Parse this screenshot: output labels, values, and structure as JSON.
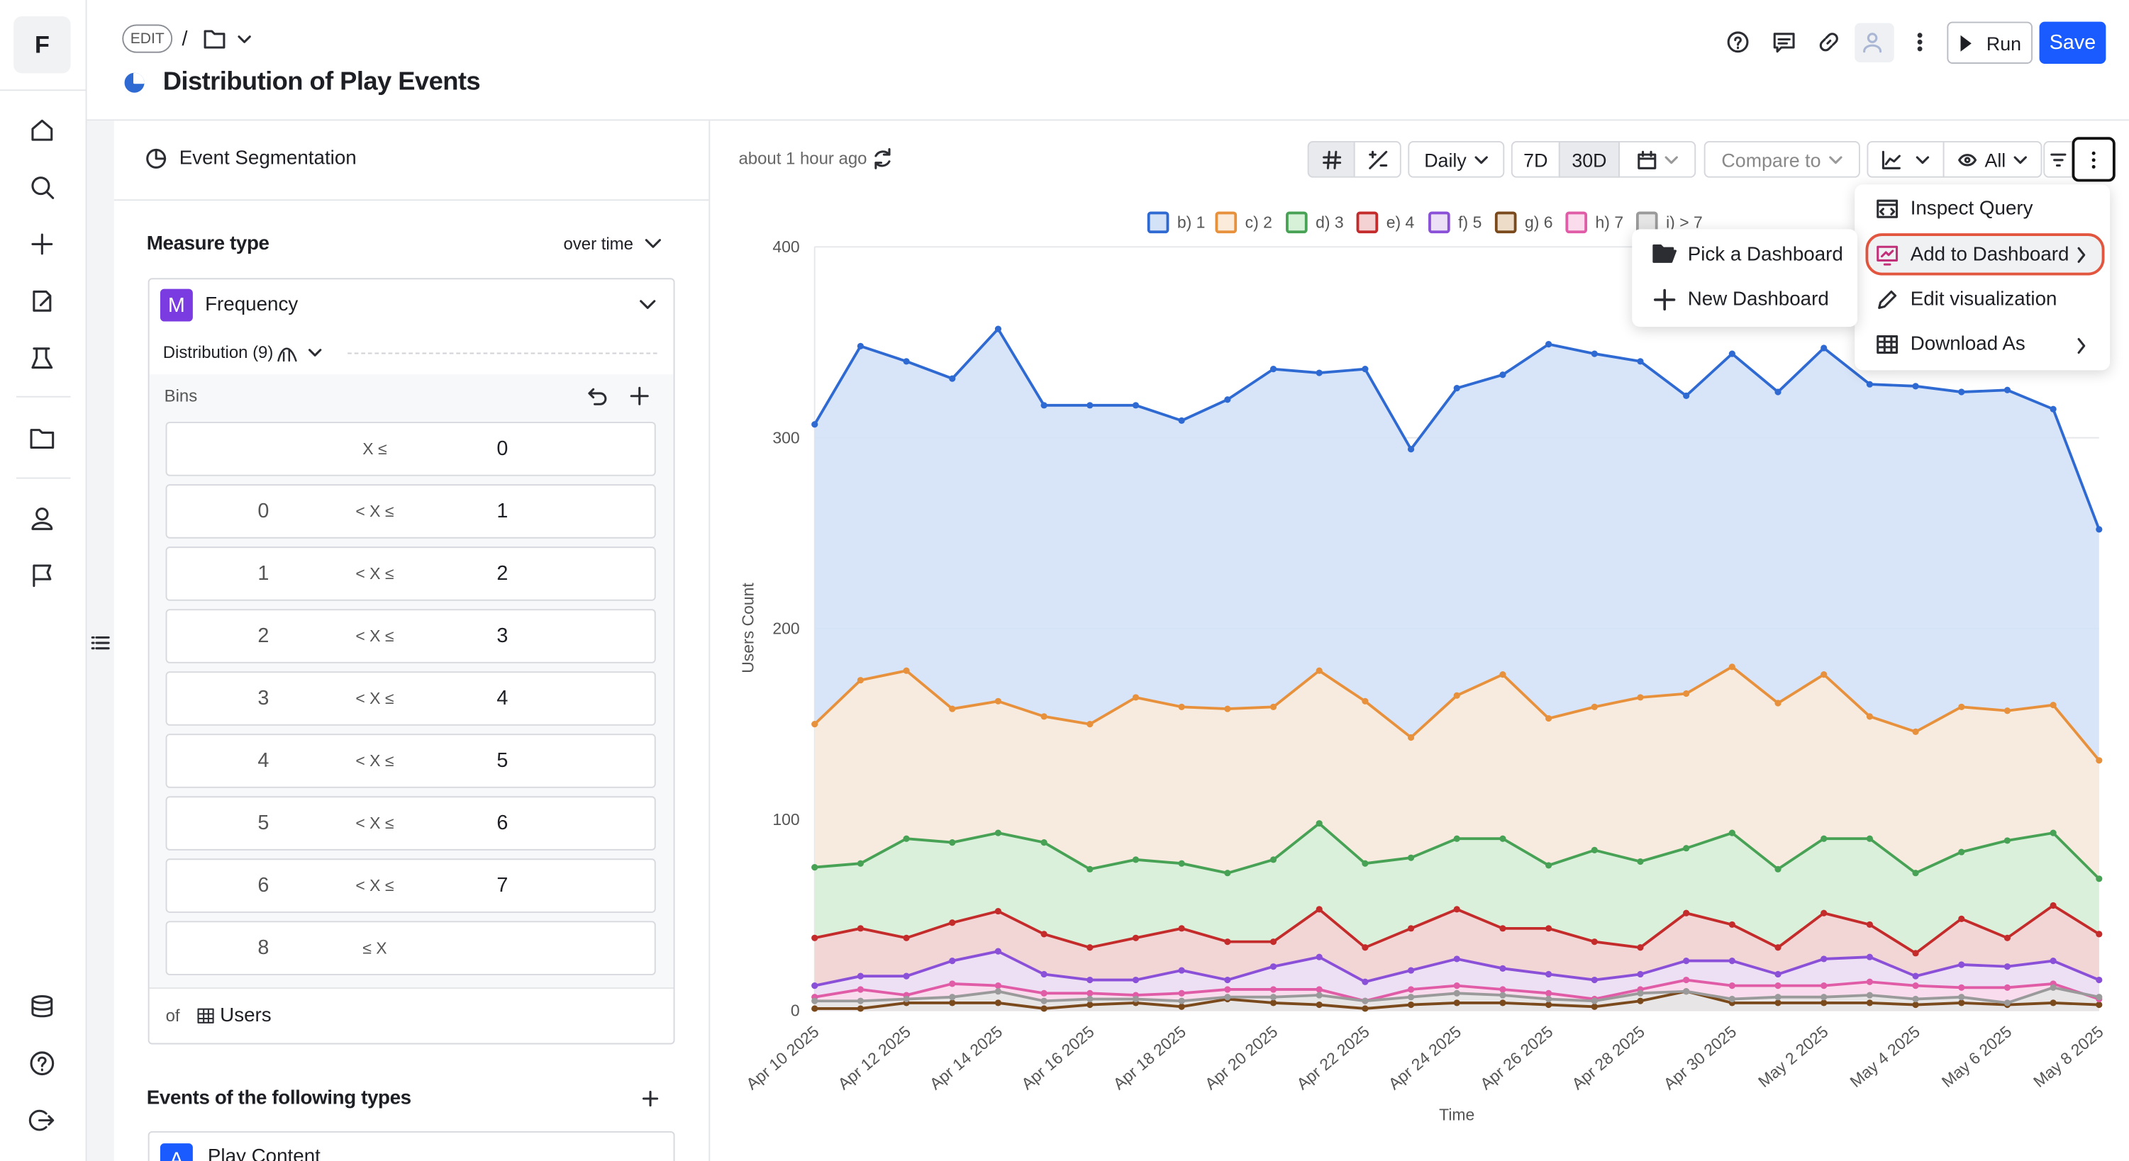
{
  "header": {
    "edit": "EDIT",
    "separator": "/",
    "title": "Distribution of Play Events",
    "run": "Run",
    "save": "Save"
  },
  "sidebar": {
    "logo": "F"
  },
  "panel": {
    "title": "Event Segmentation",
    "measure_label": "Measure type",
    "measure_mode": "over time",
    "measure_badge": "M",
    "measure": "Frequency",
    "distribution": "Distribution (9)",
    "bins_label": "Bins",
    "bins": [
      {
        "op": "X ≤",
        "upper": 0
      },
      {
        "lower": 0,
        "op": "< X ≤",
        "upper": 1
      },
      {
        "lower": 1,
        "op": "< X ≤",
        "upper": 2
      },
      {
        "lower": 2,
        "op": "< X ≤",
        "upper": 3
      },
      {
        "lower": 3,
        "op": "< X ≤",
        "upper": 4
      },
      {
        "lower": 4,
        "op": "< X ≤",
        "upper": 5
      },
      {
        "lower": 5,
        "op": "< X ≤",
        "upper": 6
      },
      {
        "lower": 6,
        "op": "< X ≤",
        "upper": 7
      },
      {
        "lower": 8,
        "op": "≤ X"
      }
    ],
    "of": "of",
    "entity": "Users",
    "events_label": "Events of the following types",
    "event_badge": "A",
    "event": "Play Content"
  },
  "toolbar": {
    "updated": "about 1 hour ago",
    "interval": "Daily",
    "range_7": "7D",
    "range_30": "30D",
    "compare": "Compare to",
    "visibility": "All"
  },
  "menu": {
    "items": [
      "Inspect Query",
      "Add to Dashboard",
      "Edit visualization",
      "Download As"
    ]
  },
  "submenu": {
    "items": [
      "Pick a Dashboard",
      "New Dashboard"
    ]
  },
  "chart_data": {
    "type": "area",
    "xlabel": "Time",
    "ylabel": "Users Count",
    "categories": [
      "Apr 10 2025",
      null,
      "Apr 12 2025",
      null,
      "Apr 14 2025",
      null,
      "Apr 16 2025",
      null,
      "Apr 18 2025",
      null,
      "Apr 20 2025",
      null,
      "Apr 22 2025",
      null,
      "Apr 24 2025",
      null,
      "Apr 26 2025",
      null,
      "Apr 28 2025",
      null,
      "Apr 30 2025",
      null,
      "May 2 2025",
      null,
      "May 4 2025",
      null,
      "May 6 2025",
      null,
      "May 8 2025"
    ],
    "series": [
      {
        "name": "b) 1",
        "color": "#2f6ad3",
        "fill": "#d4e2f8",
        "values": [
          307,
          348,
          340,
          331,
          357,
          317,
          317,
          317,
          309,
          320,
          336,
          334,
          336,
          294,
          326,
          333,
          349,
          344,
          340,
          322,
          344,
          324,
          347,
          328,
          327,
          324,
          325,
          315,
          252
        ]
      },
      {
        "name": "c) 2",
        "color": "#e8913d",
        "fill": "#fbebdb",
        "values": [
          150,
          173,
          178,
          158,
          162,
          154,
          150,
          164,
          159,
          158,
          159,
          178,
          162,
          143,
          165,
          176,
          153,
          159,
          164,
          166,
          180,
          161,
          176,
          154,
          146,
          159,
          157,
          160,
          131
        ]
      },
      {
        "name": "d) 3",
        "color": "#48a256",
        "fill": "#d7f1d9",
        "values": [
          75,
          77,
          90,
          88,
          93,
          88,
          74,
          79,
          77,
          72,
          79,
          98,
          77,
          80,
          90,
          90,
          76,
          84,
          78,
          85,
          93,
          74,
          90,
          90,
          72,
          83,
          89,
          93,
          69
        ]
      },
      {
        "name": "e) 4",
        "color": "#c42b2b",
        "fill": "#f4d2d4",
        "values": [
          38,
          43,
          38,
          46,
          52,
          40,
          33,
          38,
          43,
          36,
          36,
          53,
          33,
          43,
          53,
          43,
          43,
          36,
          33,
          51,
          45,
          33,
          51,
          45,
          30,
          48,
          38,
          55,
          40
        ]
      },
      {
        "name": "f) 5",
        "color": "#8a50d8",
        "fill": "#ece0f7",
        "values": [
          13,
          18,
          18,
          26,
          31,
          19,
          16,
          16,
          21,
          16,
          23,
          28,
          15,
          21,
          27,
          22,
          19,
          16,
          19,
          26,
          26,
          19,
          27,
          28,
          18,
          24,
          23,
          26,
          16
        ]
      },
      {
        "name": "g) 6",
        "color": "#7a4a1c",
        "fill": "#ecdcc8",
        "values": [
          1,
          1,
          4,
          4,
          4,
          1,
          3,
          4,
          2,
          6,
          4,
          3,
          1,
          3,
          4,
          4,
          3,
          2,
          5,
          10,
          4,
          4,
          4,
          4,
          3,
          4,
          3,
          4,
          3
        ]
      },
      {
        "name": "h) 7",
        "color": "#e05ca6",
        "fill": "#fadcec",
        "values": [
          7,
          11,
          8,
          14,
          13,
          9,
          9,
          8,
          9,
          11,
          11,
          11,
          5,
          11,
          13,
          11,
          9,
          6,
          11,
          16,
          13,
          13,
          13,
          15,
          13,
          12,
          12,
          14,
          6
        ]
      },
      {
        "name": "i) > 7",
        "color": "#9a9a9a",
        "fill": "#e6e6e6",
        "values": [
          5,
          5,
          6,
          7,
          10,
          5,
          6,
          6,
          5,
          7,
          7,
          8,
          5,
          7,
          9,
          8,
          6,
          5,
          9,
          10,
          6,
          7,
          7,
          8,
          6,
          7,
          4,
          12,
          7
        ]
      }
    ],
    "ylim": [
      0,
      400
    ],
    "yticks": [
      0,
      100,
      200,
      300,
      400
    ],
    "grid": true
  }
}
